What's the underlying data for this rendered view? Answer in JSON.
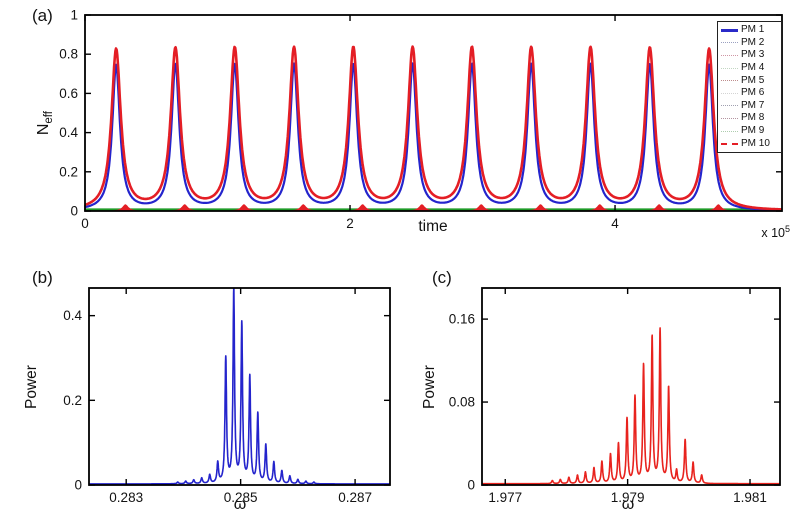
{
  "figure": {
    "background": "#ffffff"
  },
  "chart_data": [
    {
      "id": "a",
      "type": "line",
      "tag": "(a)",
      "xlabel": "time",
      "ylabel": "N_eff",
      "ylabel_base": "N",
      "ylabel_sub": "eff",
      "x_multiplier": "x 10^5",
      "x_mult_base": "x 10",
      "x_mult_exp": "5",
      "xlim": [
        0,
        5.26
      ],
      "ylim": [
        0,
        1
      ],
      "xticks": [
        "0",
        "2",
        "4"
      ],
      "xtick_vals": [
        0,
        2,
        4
      ],
      "yticks": [
        "0",
        "0.2",
        "0.4",
        "0.6",
        "0.8",
        "1"
      ],
      "ytick_vals": [
        0,
        0.2,
        0.4,
        0.6,
        0.8,
        1
      ],
      "x_units_note": "time axis scaled by 10^5",
      "n_peaks": 11,
      "peak_period": 0.4475,
      "legend_position": "top-right",
      "legend": [
        {
          "label": "PM 1",
          "color": "#2a2ac8",
          "style": "solid",
          "width": 3
        },
        {
          "label": "PM 2",
          "color": "#9aa0c0",
          "style": "dotted",
          "width": 1
        },
        {
          "label": "PM 3",
          "color": "#cf96a4",
          "style": "dotted",
          "width": 1
        },
        {
          "label": "PM 4",
          "color": "#c2d6c2",
          "style": "dotted",
          "width": 1
        },
        {
          "label": "PM 5",
          "color": "#bd8c8c",
          "style": "dotted",
          "width": 1
        },
        {
          "label": "PM 6",
          "color": "#d4d4d4",
          "style": "dotted",
          "width": 1
        },
        {
          "label": "PM 7",
          "color": "#a0a0b0",
          "style": "dotted",
          "width": 1
        },
        {
          "label": "PM 8",
          "color": "#b494a0",
          "style": "dotted",
          "width": 1
        },
        {
          "label": "PM 9",
          "color": "#aecdae",
          "style": "dotted",
          "width": 1
        },
        {
          "label": "PM 10",
          "color": "#e41e25",
          "style": "dashed",
          "width": 2
        }
      ],
      "series": [
        {
          "name": "baseline-green",
          "type": "flat",
          "height": 0.007,
          "color": "#1f9b27",
          "lw": 2.4,
          "samples": 40
        },
        {
          "name": "side-bumps-red",
          "type": "multi",
          "fill": true,
          "color": "#e41e25",
          "height": 0.034,
          "gamma": 0.028,
          "samples": 1100,
          "centers": [
            0.305,
            0.7525,
            1.2,
            1.6475,
            2.095,
            2.5425,
            2.99,
            3.4375,
            3.885,
            4.3325,
            4.78
          ]
        },
        {
          "name": "pm1-blue",
          "type": "multi",
          "color": "#2424cc",
          "height": 0.74,
          "gamma": 0.035,
          "lw": 2.2,
          "samples": 1100,
          "centers": [
            0.235,
            0.6825,
            1.13,
            1.5775,
            2.025,
            2.4725,
            2.92,
            3.3675,
            3.815,
            4.2625,
            4.71
          ]
        },
        {
          "name": "pm10-red-envelope",
          "type": "multi",
          "color": "#e41e25",
          "height": 0.818,
          "gamma": 0.042,
          "lw": 2.6,
          "samples": 1100,
          "centers": [
            0.235,
            0.6825,
            1.13,
            1.5775,
            2.025,
            2.4725,
            2.92,
            3.3675,
            3.815,
            4.2625,
            4.71
          ]
        }
      ]
    },
    {
      "id": "b",
      "type": "line",
      "tag": "(b)",
      "xlabel": "ω",
      "ylabel": "Power",
      "xlim": [
        0.28235,
        0.28761
      ],
      "ylim": [
        0,
        0.4653
      ],
      "xticks": [
        "0.283",
        "0.285",
        "0.287"
      ],
      "xtick_vals": [
        0.283,
        0.285,
        0.287
      ],
      "yticks": [
        "0",
        "0.2",
        "0.4"
      ],
      "ytick_vals": [
        0,
        0.2,
        0.4
      ],
      "series": [
        {
          "name": "power-spectrum-blue",
          "type": "comb",
          "color": "#2424cc",
          "gamma": 1.6e-05,
          "lw": 1.6,
          "base": 0.0025,
          "samples": 2200,
          "peaks": [
            [
              0.2839,
              0.004
            ],
            [
              0.28404,
              0.006
            ],
            [
              0.28418,
              0.009
            ],
            [
              0.28432,
              0.013
            ],
            [
              0.28446,
              0.02
            ],
            [
              0.2846,
              0.048
            ],
            [
              0.28474,
              0.295
            ],
            [
              0.28488,
              0.455
            ],
            [
              0.28502,
              0.375
            ],
            [
              0.28516,
              0.25
            ],
            [
              0.2853,
              0.163
            ],
            [
              0.28544,
              0.09
            ],
            [
              0.28558,
              0.05
            ],
            [
              0.28572,
              0.03
            ],
            [
              0.28586,
              0.018
            ],
            [
              0.286,
              0.01
            ],
            [
              0.28614,
              0.006
            ],
            [
              0.28628,
              0.004
            ]
          ]
        }
      ]
    },
    {
      "id": "c",
      "type": "line",
      "tag": "(c)",
      "xlabel": "ω",
      "ylabel": "Power",
      "xlim": [
        1.97662,
        1.98149
      ],
      "ylim": [
        0,
        0.19
      ],
      "xticks": [
        "1.977",
        "1.979",
        "1.981"
      ],
      "xtick_vals": [
        1.977,
        1.979,
        1.981
      ],
      "yticks": [
        "0",
        "0.08",
        "0.16"
      ],
      "ytick_vals": [
        0,
        0.08,
        0.16
      ],
      "series": [
        {
          "name": "power-spectrum-red",
          "type": "comb",
          "color": "#e8231e",
          "gamma": 1.45e-05,
          "lw": 1.6,
          "base": 0.0012,
          "samples": 2000,
          "peaks": [
            [
              1.97777,
              0.003
            ],
            [
              1.9779,
              0.004
            ],
            [
              1.97804,
              0.006
            ],
            [
              1.97818,
              0.008
            ],
            [
              1.97831,
              0.011
            ],
            [
              1.97845,
              0.015
            ],
            [
              1.97858,
              0.021
            ],
            [
              1.97872,
              0.028
            ],
            [
              1.97885,
              0.038
            ],
            [
              1.97899,
              0.062
            ],
            [
              1.97912,
              0.083
            ],
            [
              1.97926,
              0.113
            ],
            [
              1.9794,
              0.14
            ],
            [
              1.97953,
              0.147
            ],
            [
              1.97967,
              0.092
            ],
            [
              1.9798,
              0.012
            ],
            [
              1.97994,
              0.042
            ],
            [
              1.98007,
              0.02
            ],
            [
              1.98021,
              0.008
            ]
          ]
        }
      ]
    }
  ]
}
